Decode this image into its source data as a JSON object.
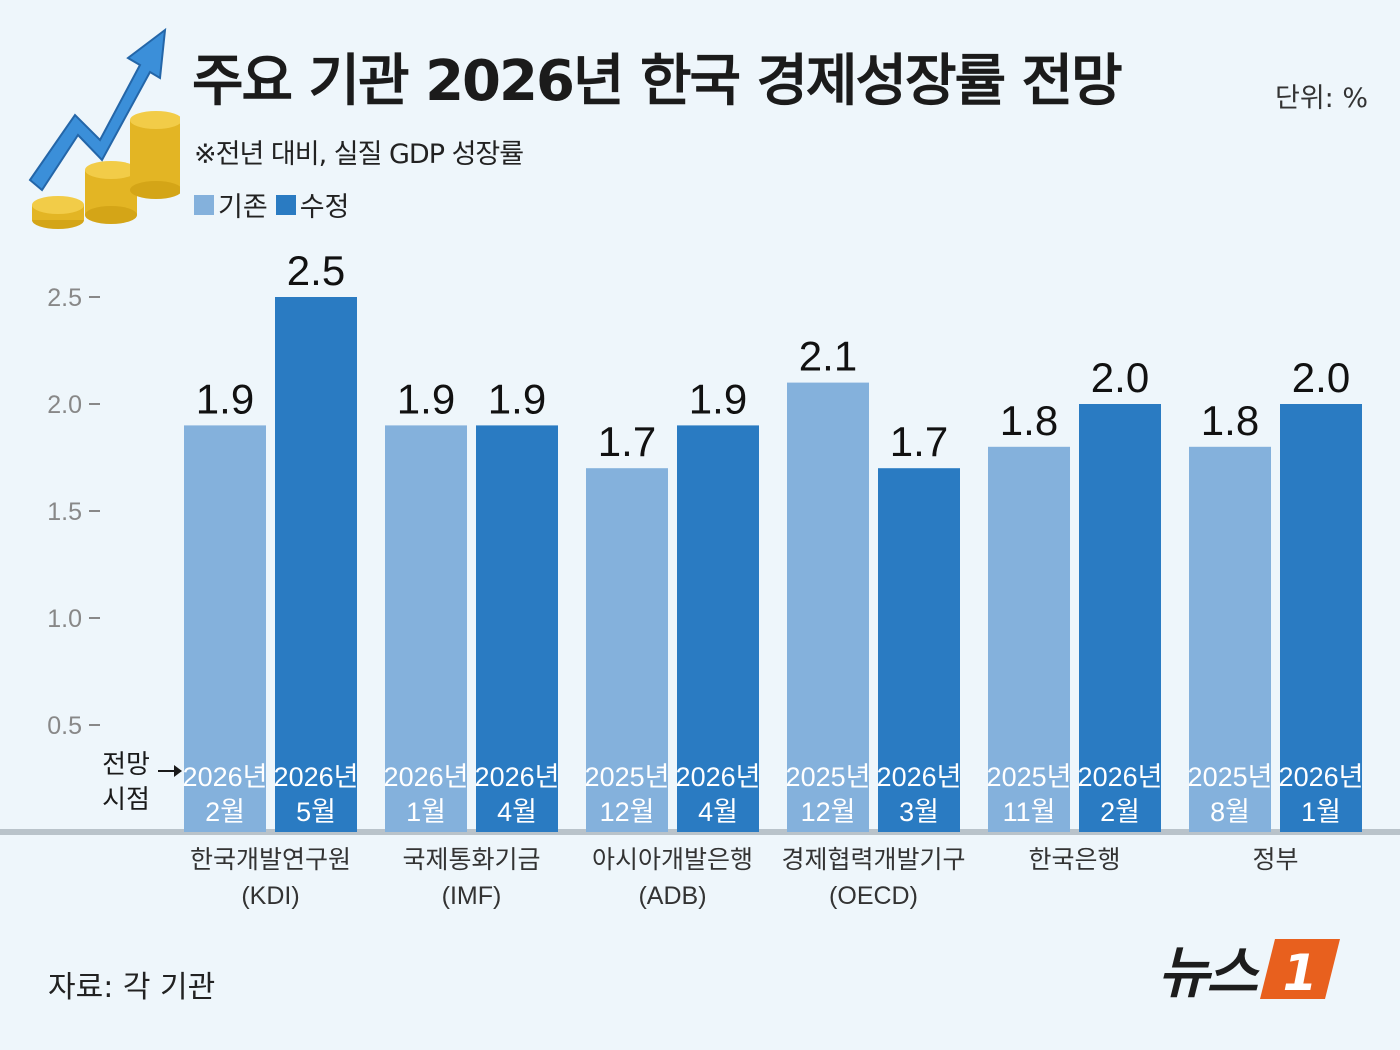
{
  "header": {
    "title": "주요 기관 2026년 한국 경제성장률 전망",
    "unit": "단위: %",
    "subtitle": "※전년 대비, 실질 GDP 성장률"
  },
  "legend": {
    "items": [
      {
        "label": "기존",
        "color": "#84b1dc"
      },
      {
        "label": "수정",
        "color": "#2a7bc2"
      }
    ]
  },
  "chart_data": {
    "type": "bar",
    "title": "주요 기관 2026년 한국 경제성장률 전망",
    "ylabel": "",
    "xlabel": "",
    "ylim": [
      0,
      2.5
    ],
    "yticks": [
      "0.5",
      "1.0",
      "1.5",
      "2.0",
      "2.5"
    ],
    "ytick_values": [
      0.5,
      1.0,
      1.5,
      2.0,
      2.5
    ],
    "point_label": [
      "전망",
      "시점"
    ],
    "categories": [
      {
        "name": "한국개발연구원",
        "abbr": "(KDI)"
      },
      {
        "name": "국제통화기금",
        "abbr": "(IMF)"
      },
      {
        "name": "아시아개발은행",
        "abbr": "(ADB)"
      },
      {
        "name": "경제협력개발기구",
        "abbr": "(OECD)"
      },
      {
        "name": "한국은행",
        "abbr": ""
      },
      {
        "name": "정부",
        "abbr": ""
      }
    ],
    "series": [
      {
        "name": "기존",
        "color": "#84b1dc",
        "values": [
          1.9,
          1.9,
          1.7,
          2.1,
          1.8,
          1.8
        ],
        "labels": [
          "1.9",
          "1.9",
          "1.7",
          "2.1",
          "1.8",
          "1.8"
        ],
        "dates": [
          [
            "2026년",
            "2월"
          ],
          [
            "2026년",
            "1월"
          ],
          [
            "2025년",
            "12월"
          ],
          [
            "2025년",
            "12월"
          ],
          [
            "2025년",
            "11월"
          ],
          [
            "2025년",
            "8월"
          ]
        ]
      },
      {
        "name": "수정",
        "color": "#2a7bc2",
        "values": [
          2.5,
          1.9,
          1.9,
          1.7,
          2.0,
          2.0
        ],
        "labels": [
          "2.5",
          "1.9",
          "1.9",
          "1.7",
          "2.0",
          "2.0"
        ],
        "dates": [
          [
            "2026년",
            "5월"
          ],
          [
            "2026년",
            "4월"
          ],
          [
            "2026년",
            "4월"
          ],
          [
            "2026년",
            "3월"
          ],
          [
            "2026년",
            "2월"
          ],
          [
            "2026년",
            "1월"
          ]
        ]
      }
    ],
    "grid": false,
    "legend_position": "top-left"
  },
  "footer": {
    "source": "자료: 각 기관",
    "logo_text": "뉴스",
    "logo_mark": "1"
  },
  "colors": {
    "background": "#eef6fb",
    "logo_orange": "#e8601e"
  }
}
